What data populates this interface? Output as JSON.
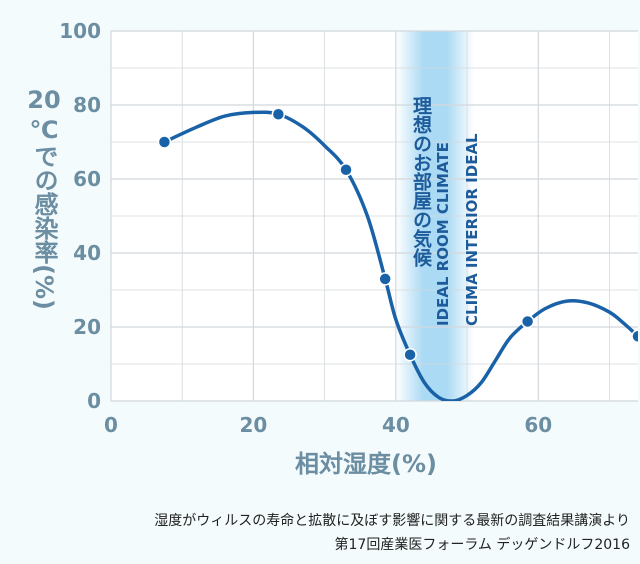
{
  "chart_data": {
    "type": "line",
    "xlabel": "相対湿度(%)",
    "ylabel": "20℃での感染率(%)",
    "ylabel_parts": [
      "20",
      "℃での感染率(%)"
    ],
    "xlim": [
      0,
      74
    ],
    "ylim": [
      0,
      100
    ],
    "x_ticks": [
      0,
      20,
      40,
      60
    ],
    "y_ticks": [
      0,
      20,
      40,
      60,
      80,
      100
    ],
    "grid": true,
    "series": [
      {
        "x": [
          7.5,
          23.5,
          33,
          38.5,
          42,
          58.5,
          74
        ],
        "y": [
          70,
          77.5,
          62.5,
          33,
          12.5,
          21.5,
          17.5
        ],
        "curve": [
          [
            7.5,
            70
          ],
          [
            12,
            74
          ],
          [
            16,
            77
          ],
          [
            20,
            78
          ],
          [
            23.5,
            77.5
          ],
          [
            27,
            74
          ],
          [
            30,
            69
          ],
          [
            33,
            62.5
          ],
          [
            36,
            50
          ],
          [
            38.5,
            33
          ],
          [
            40,
            22
          ],
          [
            42,
            12.5
          ],
          [
            44,
            5
          ],
          [
            46,
            1
          ],
          [
            48,
            0
          ],
          [
            50,
            1.5
          ],
          [
            52,
            5
          ],
          [
            54,
            11
          ],
          [
            56,
            17
          ],
          [
            58.5,
            21.5
          ],
          [
            61,
            25
          ],
          [
            64,
            27
          ],
          [
            67,
            26.5
          ],
          [
            70,
            24
          ],
          [
            72,
            21
          ],
          [
            74,
            17.5
          ]
        ]
      }
    ],
    "annotation_band": {
      "x_range": [
        40,
        51
      ],
      "label_jp": "理想のお部屋の気候",
      "label_en_1": "IDEAL ROOM CLIMATE",
      "label_en_2": "CLIMA INTERIOR IDEAL"
    },
    "colors": {
      "line": "#1a62a8",
      "band": "#8fcdf0",
      "axis_text": "#6b8ea2",
      "band_text": "#1d5b9a"
    }
  },
  "source": {
    "line1": "湿度がウィルスの寿命と拡散に及ぼす影響に関する最新の調査結果講演より",
    "line2": "第17回産業医フォーラム デッゲンドルフ2016"
  }
}
